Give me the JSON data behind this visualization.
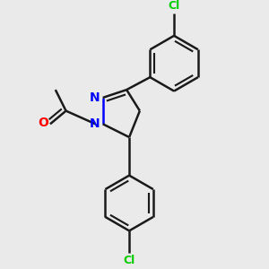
{
  "bg_color": "#eaeaea",
  "bond_color": "#1a1a1a",
  "nitrogen_color": "#0000ff",
  "oxygen_color": "#ff0000",
  "chlorine_color": "#00cc00",
  "line_width": 1.8,
  "figsize": [
    3.0,
    3.0
  ],
  "dpi": 100,
  "xlim": [
    0.0,
    1.0
  ],
  "ylim": [
    0.0,
    1.0
  ]
}
